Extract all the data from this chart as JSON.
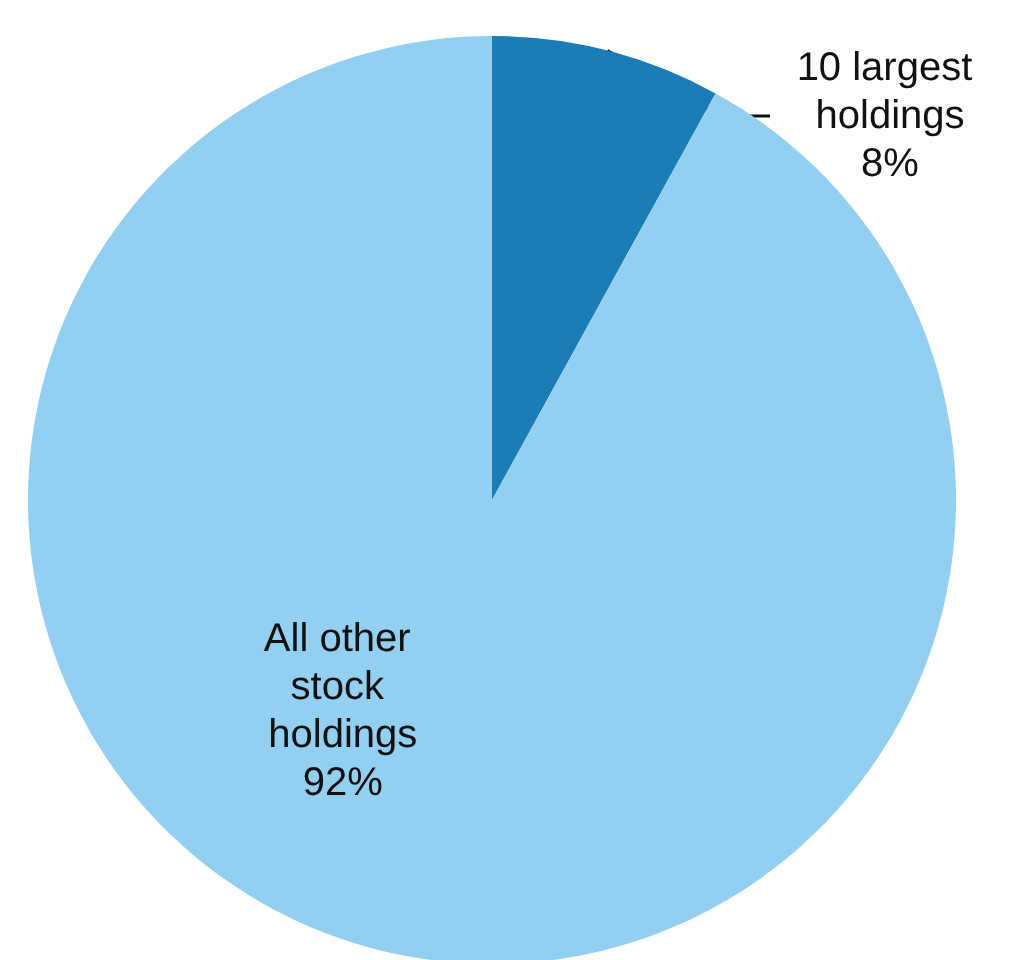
{
  "chart_data": {
    "type": "pie",
    "categories": [
      "10 largest holdings",
      "All other stock holdings"
    ],
    "values": [
      8,
      92
    ],
    "colors": [
      "#1a7db5",
      "#92cff0"
    ],
    "value_labels": [
      "8%",
      "92%"
    ]
  }
}
